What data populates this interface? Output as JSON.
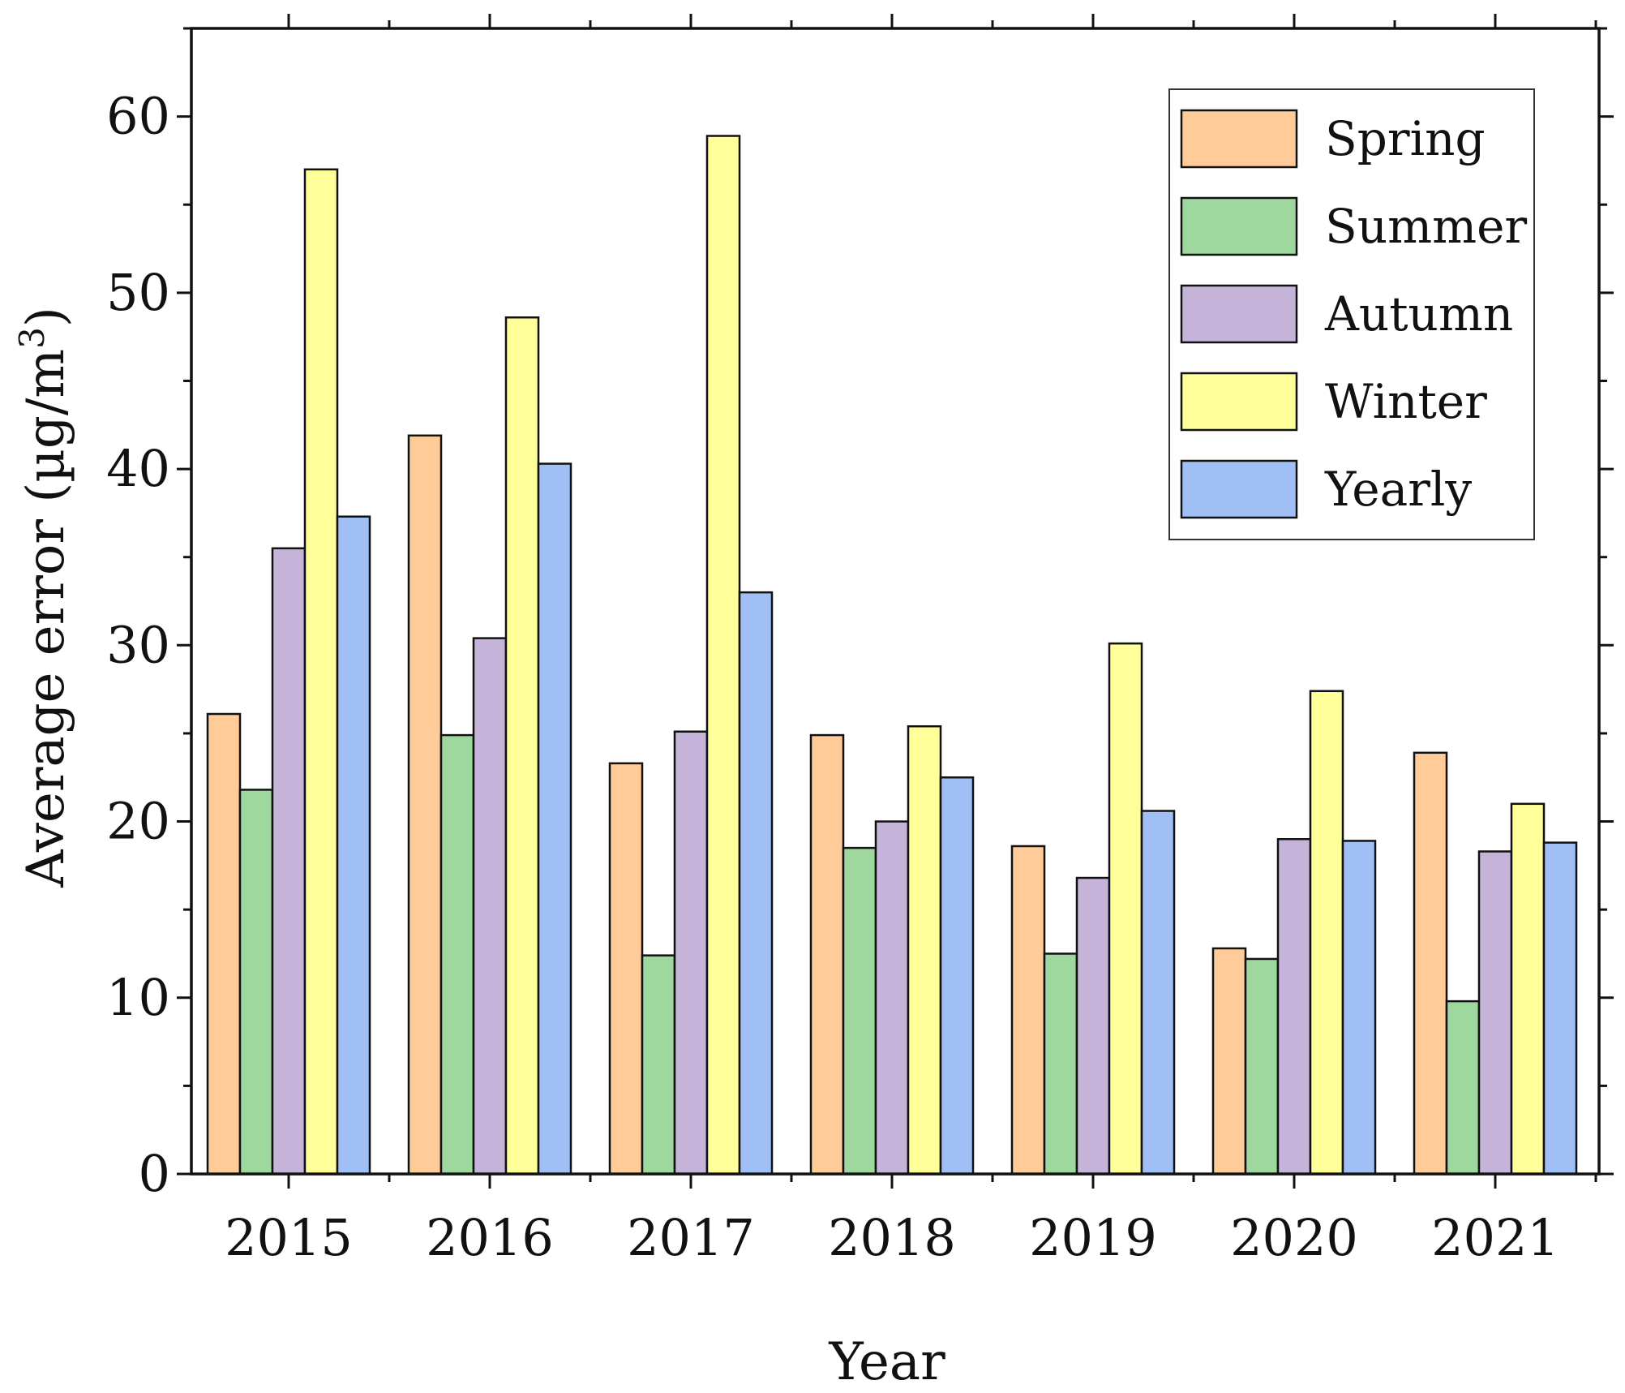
{
  "chart_data": {
    "type": "bar",
    "title": "",
    "xlabel": "Year",
    "ylabel_main": "Average error (µg/m",
    "ylabel_sup": "3",
    "ylabel_close": ")",
    "ylim": [
      0,
      65
    ],
    "yticks": [
      0,
      10,
      20,
      30,
      40,
      50,
      60
    ],
    "grid": false,
    "legend_position": "top-right",
    "categories": [
      "2015",
      "2016",
      "2017",
      "2018",
      "2019",
      "2020",
      "2021"
    ],
    "series": [
      {
        "name": "Spring",
        "color": "#FFCC99",
        "values": [
          26.1,
          41.9,
          23.3,
          24.9,
          18.6,
          12.8,
          23.9
        ]
      },
      {
        "name": "Summer",
        "color": "#9FD89E",
        "values": [
          21.8,
          24.9,
          12.4,
          18.5,
          12.5,
          12.2,
          9.8
        ]
      },
      {
        "name": "Autumn",
        "color": "#C5B3DA",
        "values": [
          35.5,
          30.4,
          25.1,
          20.0,
          16.8,
          19.0,
          18.3
        ]
      },
      {
        "name": "Winter",
        "color": "#FFFF99",
        "values": [
          57.0,
          48.6,
          58.9,
          25.4,
          30.1,
          27.4,
          21.0
        ]
      },
      {
        "name": "Yearly",
        "color": "#9FBFF5",
        "values": [
          37.3,
          40.3,
          33.0,
          22.5,
          20.6,
          18.9,
          18.8
        ]
      }
    ]
  }
}
